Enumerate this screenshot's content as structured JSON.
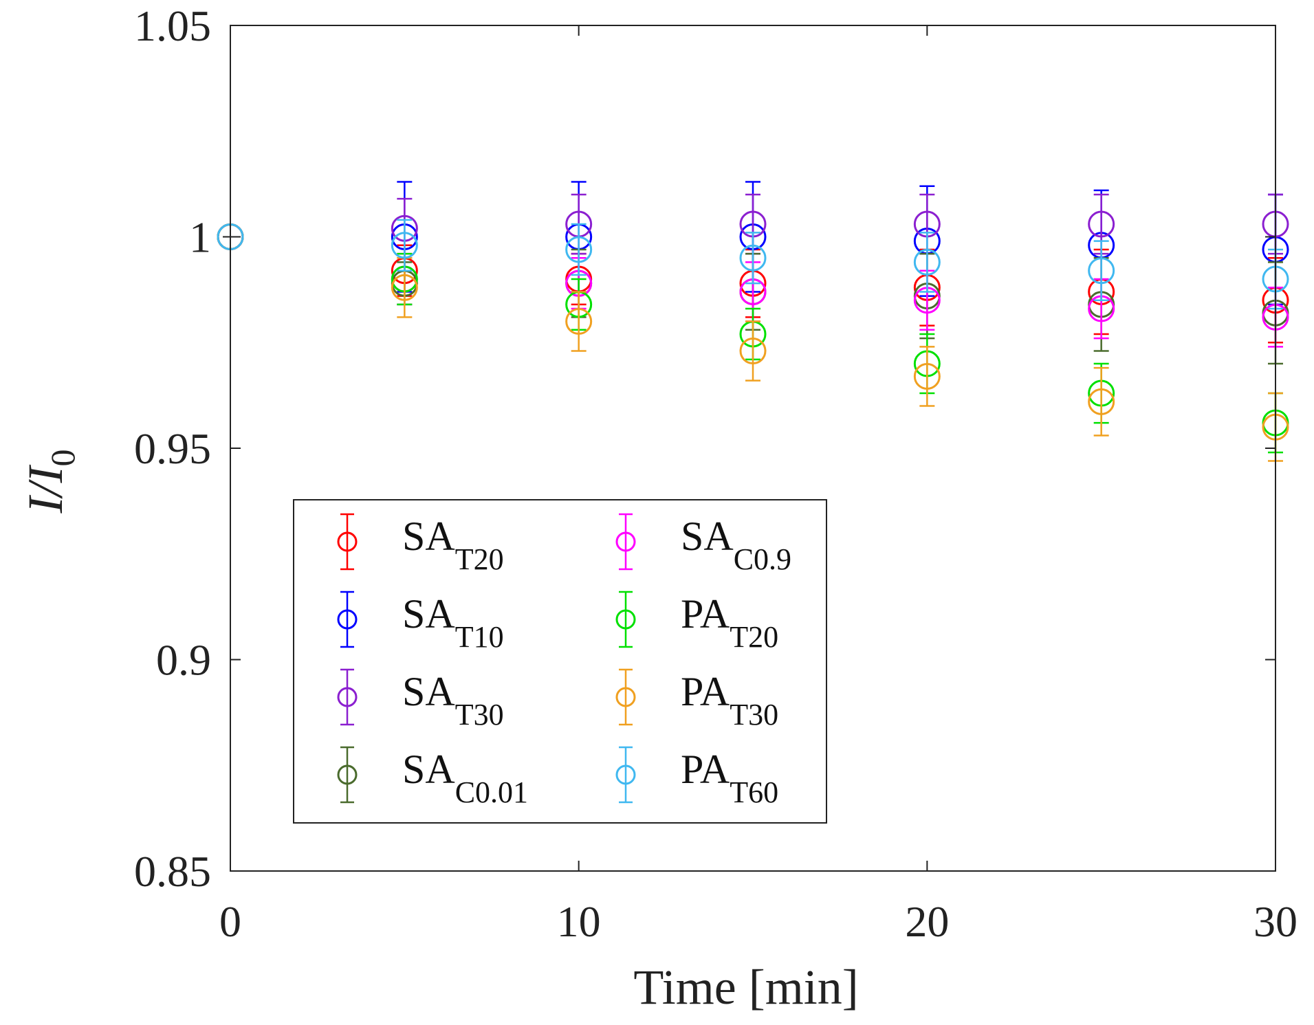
{
  "chart_data": {
    "type": "scatter",
    "title": "",
    "xlabel": "Time [min]",
    "ylabel": "I/I0",
    "ylabel_parts": {
      "main": "I/I",
      "sub": "0"
    },
    "xlim": [
      0,
      30
    ],
    "ylim": [
      0.85,
      1.05
    ],
    "xticks": [
      0,
      10,
      20,
      30
    ],
    "xtick_labels": [
      "0",
      "10",
      "20",
      "30"
    ],
    "yticks": [
      0.85,
      0.9,
      0.95,
      1.0,
      1.05
    ],
    "ytick_labels": [
      "0.85",
      "0.9",
      "0.95",
      "1",
      "1.05"
    ],
    "grid": false,
    "legend_position": "bottom-left",
    "x": [
      0,
      5,
      10,
      15,
      20,
      25,
      30
    ],
    "series": [
      {
        "name": "SA_T20",
        "label_main": "SA",
        "label_sub": "T20",
        "color": "#ff0000",
        "values": [
          1.0,
          0.992,
          0.99,
          0.989,
          0.988,
          0.987,
          0.985
        ],
        "errors": [
          0.0,
          0.006,
          0.006,
          0.008,
          0.009,
          0.01,
          0.01
        ]
      },
      {
        "name": "SA_T10",
        "label_main": "SA",
        "label_sub": "T10",
        "color": "#0000ff",
        "values": [
          1.0,
          1.0,
          1.0,
          1.0,
          0.999,
          0.998,
          0.997
        ],
        "errors": [
          0.0,
          0.013,
          0.013,
          0.013,
          0.013,
          0.013,
          0.013
        ]
      },
      {
        "name": "SA_T30",
        "label_main": "SA",
        "label_sub": "T30",
        "color": "#8b1fd0",
        "values": [
          1.0,
          1.002,
          1.003,
          1.003,
          1.003,
          1.003,
          1.003
        ],
        "errors": [
          0.0,
          0.007,
          0.007,
          0.007,
          0.007,
          0.007,
          0.007
        ]
      },
      {
        "name": "SA_C0.01",
        "label_main": "SA",
        "label_sub": "C0.01",
        "color": "#4a6b2d",
        "values": [
          1.0,
          0.989,
          0.989,
          0.987,
          0.986,
          0.984,
          0.982
        ],
        "errors": [
          0.0,
          0.005,
          0.008,
          0.009,
          0.01,
          0.011,
          0.012
        ]
      },
      {
        "name": "SA_C0.9",
        "label_main": "SA",
        "label_sub": "C0.9",
        "color": "#ff00ff",
        "values": [
          1.0,
          0.99,
          0.989,
          0.987,
          0.985,
          0.983,
          0.981
        ],
        "errors": [
          0.0,
          0.006,
          0.006,
          0.007,
          0.007,
          0.007,
          0.007
        ]
      },
      {
        "name": "PA_T20",
        "label_main": "PA",
        "label_sub": "T20",
        "color": "#00e000",
        "values": [
          1.0,
          0.99,
          0.984,
          0.977,
          0.97,
          0.963,
          0.956
        ],
        "errors": [
          0.0,
          0.006,
          0.006,
          0.006,
          0.007,
          0.007,
          0.007
        ]
      },
      {
        "name": "PA_T30",
        "label_main": "PA",
        "label_sub": "T30",
        "color": "#f0a020",
        "values": [
          1.0,
          0.988,
          0.98,
          0.973,
          0.967,
          0.961,
          0.955
        ],
        "errors": [
          0.0,
          0.007,
          0.007,
          0.007,
          0.007,
          0.008,
          0.008
        ]
      },
      {
        "name": "PA_T60",
        "label_main": "PA",
        "label_sub": "T60",
        "color": "#40b8f0",
        "values": [
          1.0,
          0.998,
          0.997,
          0.995,
          0.994,
          0.992,
          0.99
        ],
        "errors": [
          0.0,
          0.006,
          0.006,
          0.006,
          0.007,
          0.007,
          0.007
        ]
      }
    ]
  }
}
